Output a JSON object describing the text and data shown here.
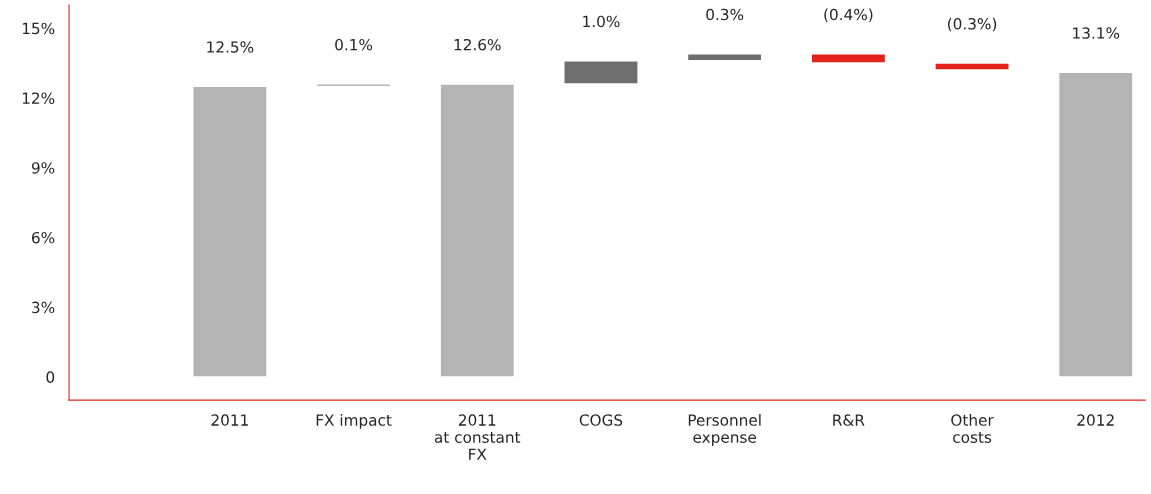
{
  "chart_data": {
    "type": "bar",
    "categories": [
      "2011",
      "FX impact",
      "2011\nat constant\nFX",
      "COGS",
      "Personnel\nexpense",
      "R&R",
      "Other\ncosts",
      "2012"
    ],
    "values": [
      12.5,
      0.1,
      12.6,
      1.0,
      0.3,
      -0.4,
      -0.3,
      13.1
    ],
    "base": [
      0,
      12.5,
      0,
      12.6,
      13.6,
      13.9,
      13.5,
      0
    ],
    "colors": [
      "#b4b4b4",
      "#6e6e6e",
      "#b4b4b4",
      "#6e6e6e",
      "#6e6e6e",
      "#e3231b",
      "#e3231b",
      "#b4b4b4"
    ],
    "value_labels": [
      "12.5%",
      "0.1%",
      "12.6%",
      "1.0%",
      "0.3%",
      "(0.4%)",
      "(0.3%)",
      "13.1%"
    ],
    "ylim": [
      -1,
      16
    ],
    "yticks": [
      {
        "value": 0,
        "label": "0"
      },
      {
        "value": 3,
        "label": "3%"
      },
      {
        "value": 6,
        "label": "6%"
      },
      {
        "value": 9,
        "label": "9%"
      },
      {
        "value": 12,
        "label": "12%"
      },
      {
        "value": 15,
        "label": "15%"
      }
    ],
    "grid": false,
    "legend": false
  }
}
